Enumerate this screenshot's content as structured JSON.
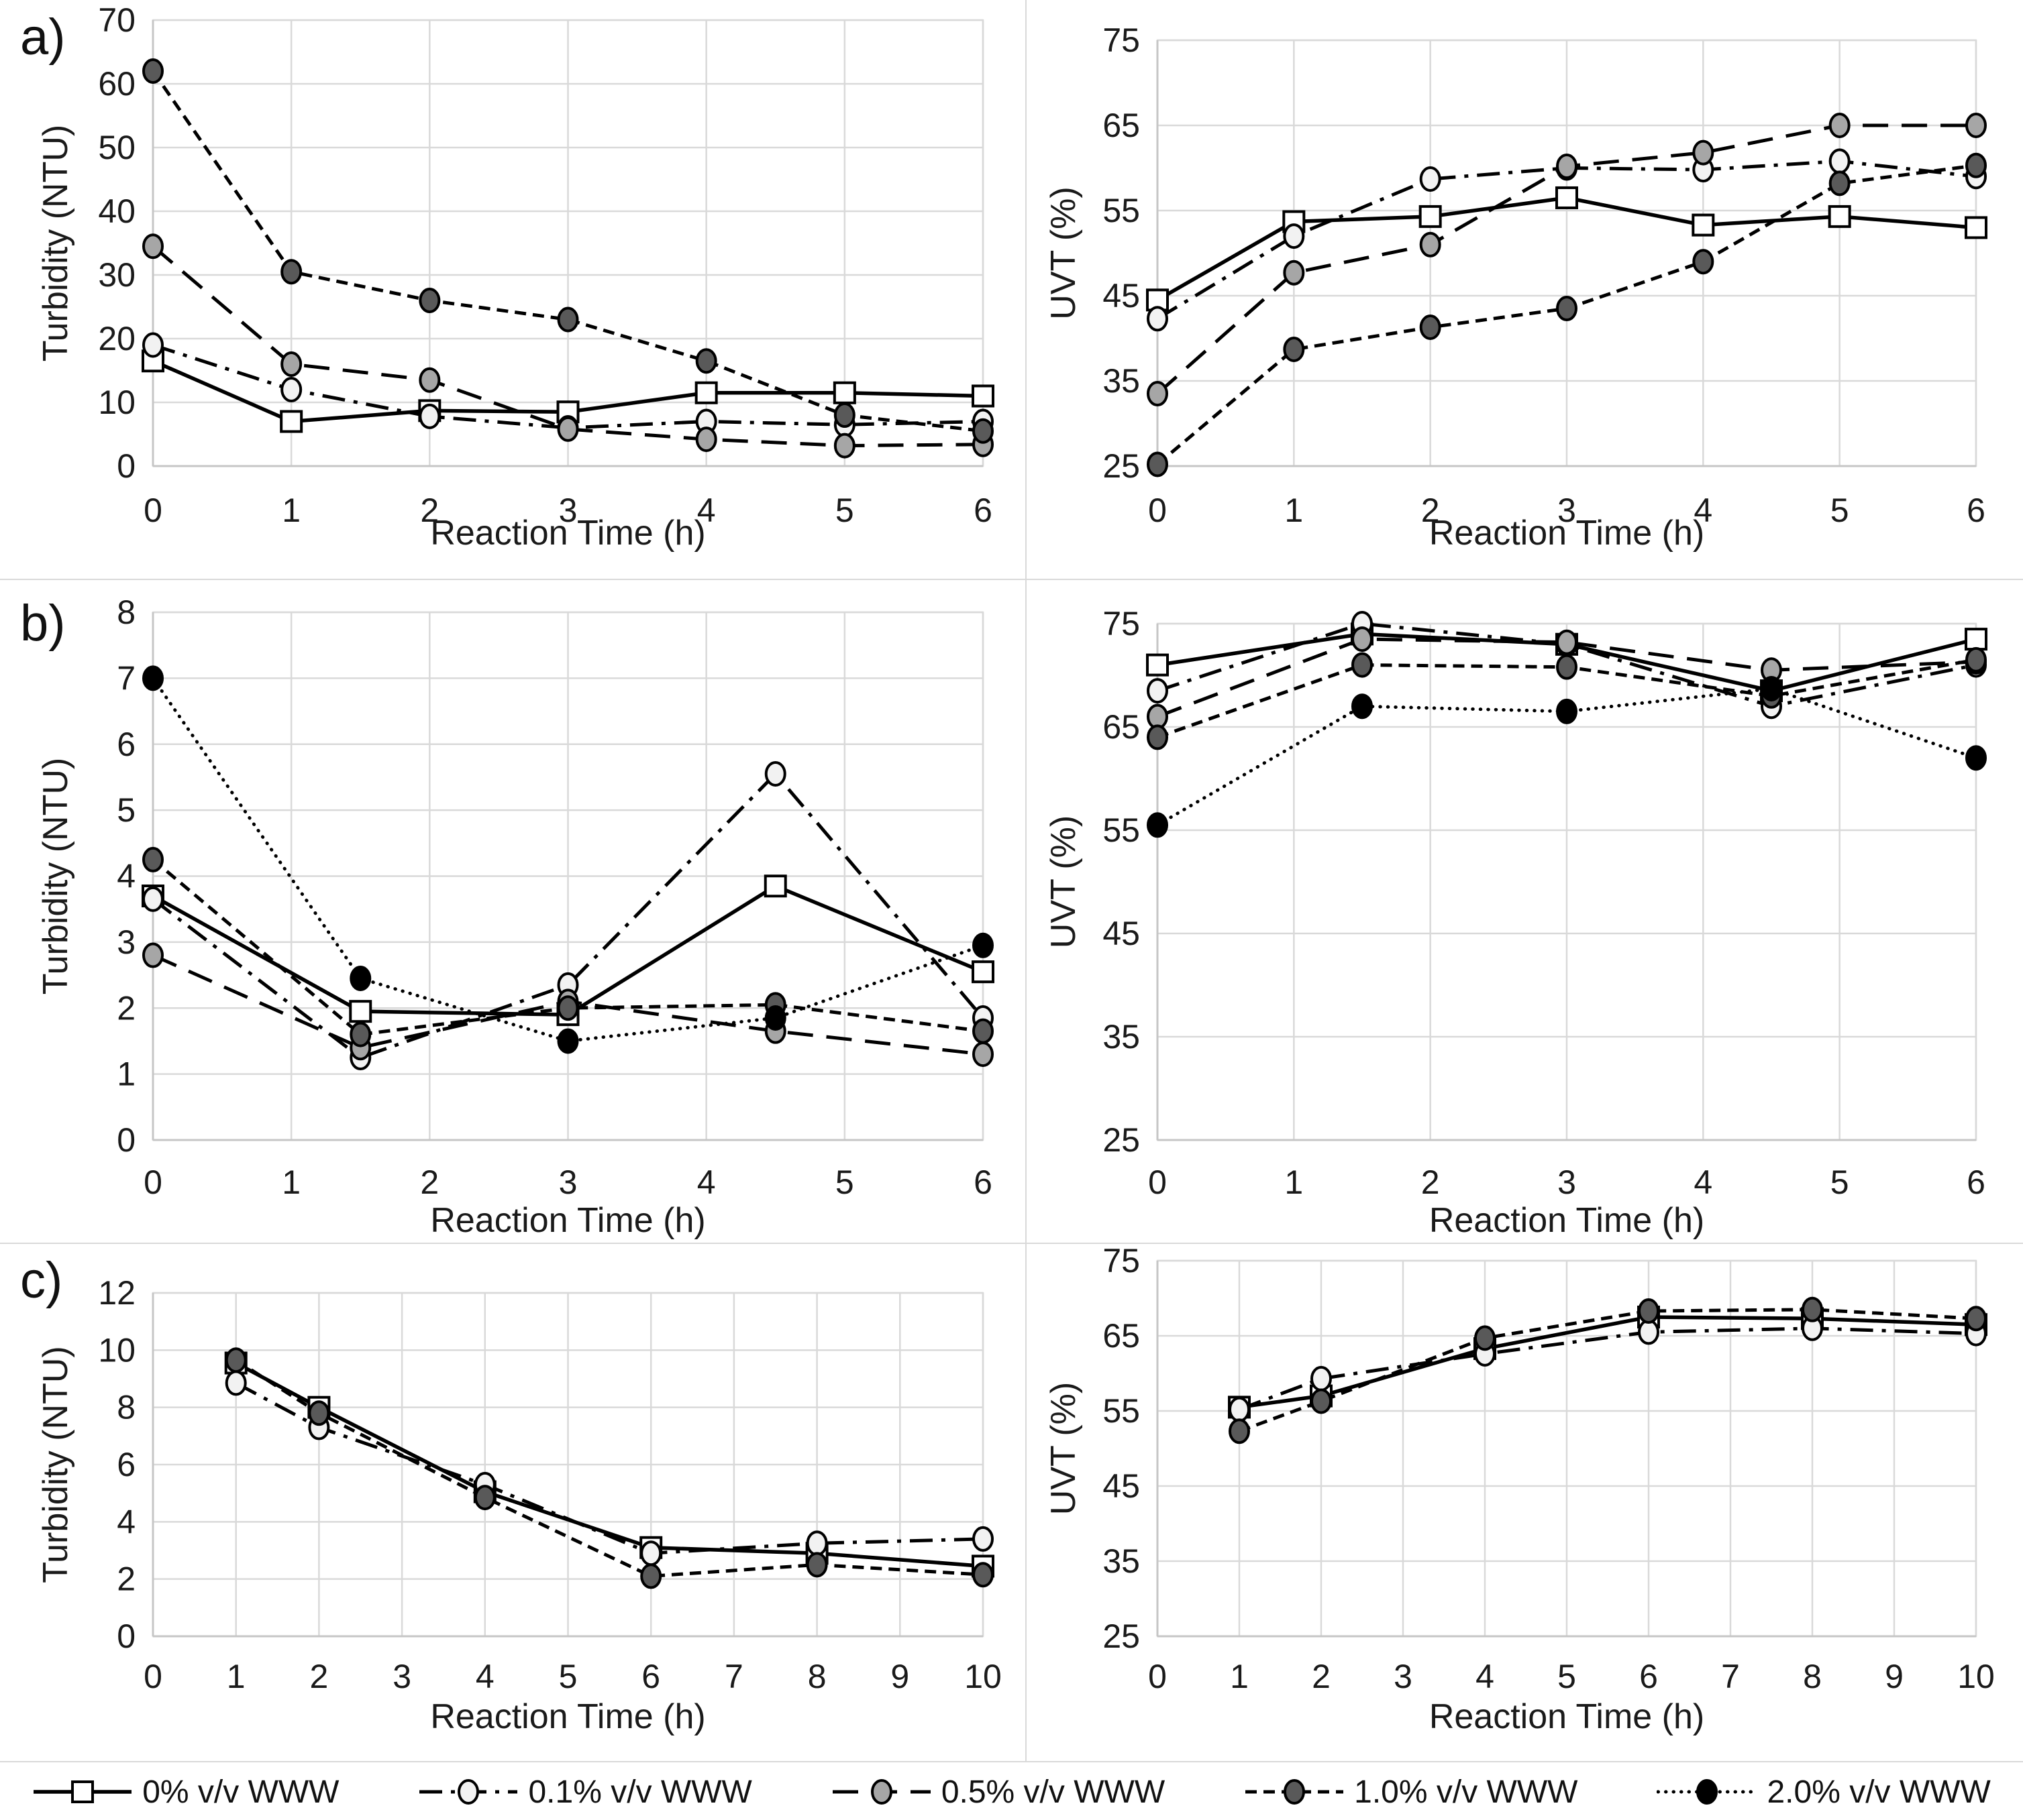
{
  "panels": [
    {
      "label": "a)"
    },
    {
      "label": "b)"
    },
    {
      "label": "c)"
    }
  ],
  "colors": {
    "grid": "#d9d9d9",
    "axis": "#c6c6c6",
    "line": "#000000",
    "text": "#1a1a1a",
    "background": "#ffffff"
  },
  "series_styles": {
    "pct0": {
      "label": "0% v/v WWW",
      "marker": "square",
      "marker_fill": "#ffffff",
      "dash": "solid"
    },
    "pct01": {
      "label": "0.1% v/v WWW",
      "marker": "circle",
      "marker_fill": "#f2f2f2",
      "dash": "dashdot"
    },
    "pct05": {
      "label": "0.5% v/v WWW",
      "marker": "circle",
      "marker_fill": "#a6a6a6",
      "dash": "longdash"
    },
    "pct10": {
      "label": "1.0% v/v WWW",
      "marker": "circle",
      "marker_fill": "#595959",
      "dash": "shortdash"
    },
    "pct20": {
      "label": "2.0% v/v WWW",
      "marker": "circle",
      "marker_fill": "#000000",
      "dash": "dot"
    }
  },
  "legend": {
    "items": [
      {
        "style": "pct0",
        "label": "0% v/v WWW"
      },
      {
        "style": "pct01",
        "label": "0.1% v/v WWW"
      },
      {
        "style": "pct05",
        "label": "0.5% v/v WWW"
      },
      {
        "style": "pct10",
        "label": "1.0% v/v WWW"
      },
      {
        "style": "pct20",
        "label": "2.0% v/v WWW"
      }
    ]
  },
  "chart_data": [
    {
      "id": "a-turbidity",
      "panel": "a",
      "side": "left",
      "type": "line",
      "title": "",
      "xlabel": "Reaction Time (h)",
      "ylabel": "Turbidity (NTU)",
      "xlim": [
        0,
        6
      ],
      "ylim": [
        0,
        70
      ],
      "xticks": [
        0,
        1,
        2,
        3,
        4,
        5,
        6
      ],
      "yticks": [
        0,
        10,
        20,
        30,
        40,
        50,
        60,
        70
      ],
      "grid": true,
      "legend_position": "none",
      "series": [
        {
          "style": "pct0",
          "name": "0% v/v WWW",
          "x": [
            0,
            1,
            2,
            3,
            4,
            5,
            6
          ],
          "y": [
            16.5,
            7,
            8.7,
            8.5,
            11.5,
            11.5,
            11
          ]
        },
        {
          "style": "pct01",
          "name": "0.1% v/v WWW",
          "x": [
            0,
            1,
            2,
            3,
            4,
            5,
            6
          ],
          "y": [
            19,
            12,
            7.8,
            6,
            7,
            6.5,
            7
          ]
        },
        {
          "style": "pct05",
          "name": "0.5% v/v WWW",
          "x": [
            0,
            1,
            2,
            3,
            4,
            5,
            6
          ],
          "y": [
            34.5,
            16,
            13.5,
            5.8,
            4.2,
            3.2,
            3.4
          ]
        },
        {
          "style": "pct10",
          "name": "1.0% v/v WWW",
          "x": [
            0,
            1,
            2,
            3,
            4,
            5,
            6
          ],
          "y": [
            62,
            30.5,
            26,
            23,
            16.5,
            8,
            5.5
          ]
        }
      ]
    },
    {
      "id": "a-uvt",
      "panel": "a",
      "side": "right",
      "type": "line",
      "title": "",
      "xlabel": "Reaction Time (h)",
      "ylabel": "UVT (%)",
      "xlim": [
        0,
        6
      ],
      "ylim": [
        25,
        75
      ],
      "xticks": [
        0,
        1,
        2,
        3,
        4,
        5,
        6
      ],
      "yticks": [
        25,
        35,
        45,
        55,
        65,
        75
      ],
      "grid": true,
      "legend_position": "none",
      "series": [
        {
          "style": "pct0",
          "name": "0% v/v WWW",
          "x": [
            0,
            1,
            2,
            3,
            4,
            5,
            6
          ],
          "y": [
            44.5,
            53.7,
            54.3,
            56.5,
            53.3,
            54.3,
            53
          ]
        },
        {
          "style": "pct01",
          "name": "0.1% v/v WWW",
          "x": [
            0,
            1,
            2,
            3,
            4,
            5,
            6
          ],
          "y": [
            42.3,
            52,
            58.7,
            60,
            59.8,
            60.8,
            59
          ]
        },
        {
          "style": "pct05",
          "name": "0.5% v/v WWW",
          "x": [
            0,
            1,
            2,
            3,
            4,
            5,
            6
          ],
          "y": [
            33.5,
            47.7,
            51,
            60.2,
            61.8,
            65,
            65
          ]
        },
        {
          "style": "pct10",
          "name": "1.0% v/v WWW",
          "x": [
            0,
            1,
            2,
            3,
            4,
            5,
            6
          ],
          "y": [
            25.2,
            38.7,
            41.3,
            43.5,
            49,
            58.2,
            60.3
          ]
        }
      ]
    },
    {
      "id": "b-turbidity",
      "panel": "b",
      "side": "left",
      "type": "line",
      "title": "",
      "xlabel": "Reaction Time (h)",
      "ylabel": "Turbidity (NTU)",
      "xlim": [
        0,
        6
      ],
      "ylim": [
        0,
        8
      ],
      "xticks": [
        0,
        1,
        2,
        3,
        4,
        5,
        6
      ],
      "yticks": [
        0,
        1,
        2,
        3,
        4,
        5,
        6,
        7,
        8
      ],
      "grid": true,
      "legend_position": "none",
      "series": [
        {
          "style": "pct0",
          "name": "0% v/v WWW",
          "x": [
            0,
            1.5,
            3,
            4.5,
            6
          ],
          "y": [
            3.7,
            1.95,
            1.9,
            3.85,
            2.55
          ]
        },
        {
          "style": "pct01",
          "name": "0.1% v/v WWW",
          "x": [
            0,
            1.5,
            3,
            4.5,
            6
          ],
          "y": [
            3.65,
            1.25,
            2.35,
            5.55,
            1.85
          ]
        },
        {
          "style": "pct05",
          "name": "0.5% v/v WWW",
          "x": [
            0,
            1.5,
            3,
            4.5,
            6
          ],
          "y": [
            2.8,
            1.4,
            2.1,
            1.65,
            1.3
          ]
        },
        {
          "style": "pct10",
          "name": "1.0% v/v WWW",
          "x": [
            0,
            1.5,
            3,
            4.5,
            6
          ],
          "y": [
            4.25,
            1.6,
            2.0,
            2.05,
            1.65
          ]
        },
        {
          "style": "pct20",
          "name": "2.0% v/v WWW",
          "x": [
            0,
            1.5,
            3,
            4.5,
            6
          ],
          "y": [
            7.0,
            2.45,
            1.5,
            1.85,
            2.95
          ]
        }
      ]
    },
    {
      "id": "b-uvt",
      "panel": "b",
      "side": "right",
      "type": "line",
      "title": "",
      "xlabel": "Reaction Time (h)",
      "ylabel": "UVT (%)",
      "xlim": [
        0,
        6
      ],
      "ylim": [
        25,
        75
      ],
      "xticks": [
        0,
        1,
        2,
        3,
        4,
        5,
        6
      ],
      "yticks": [
        25,
        35,
        45,
        55,
        65,
        75
      ],
      "grid": true,
      "legend_position": "none",
      "series": [
        {
          "style": "pct0",
          "name": "0% v/v WWW",
          "x": [
            0,
            1.5,
            3,
            4.5,
            6
          ],
          "y": [
            71,
            74,
            73,
            68.5,
            73.5
          ]
        },
        {
          "style": "pct01",
          "name": "0.1% v/v WWW",
          "x": [
            0,
            1.5,
            3,
            4.5,
            6
          ],
          "y": [
            68.5,
            75,
            73,
            67,
            71
          ]
        },
        {
          "style": "pct05",
          "name": "0.5% v/v WWW",
          "x": [
            0,
            1.5,
            3,
            4.5,
            6
          ],
          "y": [
            66,
            73.5,
            73.2,
            70.5,
            71.3
          ]
        },
        {
          "style": "pct10",
          "name": "1.0% v/v WWW",
          "x": [
            0,
            1.5,
            3,
            4.5,
            6
          ],
          "y": [
            64,
            71,
            70.8,
            68,
            71.5
          ]
        },
        {
          "style": "pct20",
          "name": "2.0% v/v WWW",
          "x": [
            0,
            1.5,
            3,
            4.5,
            6
          ],
          "y": [
            55.5,
            67,
            66.5,
            68.7,
            62
          ]
        }
      ]
    },
    {
      "id": "c-turbidity",
      "panel": "c",
      "side": "left",
      "type": "line",
      "title": "",
      "xlabel": "Reaction Time (h)",
      "ylabel": "Turbidity (NTU)",
      "xlim": [
        0,
        10
      ],
      "ylim": [
        0,
        12
      ],
      "xticks": [
        0,
        1,
        2,
        3,
        4,
        5,
        6,
        7,
        8,
        9,
        10
      ],
      "yticks": [
        0,
        2,
        4,
        6,
        8,
        10,
        12
      ],
      "grid": true,
      "legend_position": "none",
      "series": [
        {
          "style": "pct0",
          "name": "0% v/v WWW",
          "x": [
            1,
            2,
            4,
            6,
            8,
            10
          ],
          "y": [
            9.55,
            8.0,
            5.05,
            3.1,
            2.9,
            2.45
          ]
        },
        {
          "style": "pct01",
          "name": "0.1% v/v WWW",
          "x": [
            1,
            2,
            4,
            6,
            8,
            10
          ],
          "y": [
            8.85,
            7.3,
            5.3,
            2.9,
            3.25,
            3.4
          ]
        },
        {
          "style": "pct10",
          "name": "1.0% v/v WWW",
          "x": [
            1,
            2,
            4,
            6,
            8,
            10
          ],
          "y": [
            9.65,
            7.8,
            4.85,
            2.1,
            2.5,
            2.15
          ]
        }
      ]
    },
    {
      "id": "c-uvt",
      "panel": "c",
      "side": "right",
      "type": "line",
      "title": "",
      "xlabel": "Reaction Time (h)",
      "ylabel": "UVT (%)",
      "xlim": [
        0,
        10
      ],
      "ylim": [
        25,
        75
      ],
      "xticks": [
        0,
        1,
        2,
        3,
        4,
        5,
        6,
        7,
        8,
        9,
        10
      ],
      "yticks": [
        25,
        35,
        45,
        55,
        65,
        75
      ],
      "grid": true,
      "legend_position": "none",
      "series": [
        {
          "style": "pct0",
          "name": "0% v/v WWW",
          "x": [
            1,
            2,
            4,
            6,
            8,
            10
          ],
          "y": [
            55.5,
            57,
            63.3,
            67.5,
            67.3,
            66.5
          ]
        },
        {
          "style": "pct01",
          "name": "0.1% v/v WWW",
          "x": [
            1,
            2,
            4,
            6,
            8,
            10
          ],
          "y": [
            55.2,
            59.3,
            62.6,
            65.5,
            66,
            65.3
          ]
        },
        {
          "style": "pct10",
          "name": "1.0% v/v WWW",
          "x": [
            1,
            2,
            4,
            6,
            8,
            10
          ],
          "y": [
            52.3,
            56.3,
            64.7,
            68.3,
            68.5,
            67.3
          ]
        }
      ]
    }
  ]
}
